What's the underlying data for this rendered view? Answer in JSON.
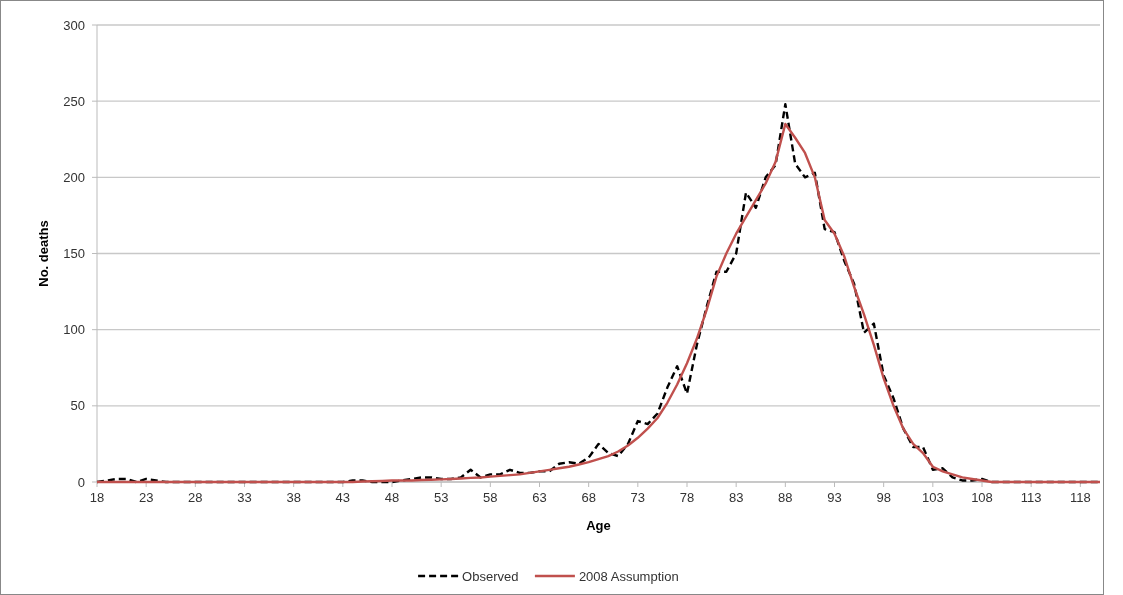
{
  "chart_data": {
    "type": "line",
    "xlabel": "Age",
    "ylabel": "No. deaths",
    "x": [
      18,
      19,
      20,
      21,
      22,
      23,
      24,
      25,
      26,
      27,
      28,
      29,
      30,
      31,
      32,
      33,
      34,
      35,
      36,
      37,
      38,
      39,
      40,
      41,
      42,
      43,
      44,
      45,
      46,
      47,
      48,
      49,
      50,
      51,
      52,
      53,
      54,
      55,
      56,
      57,
      58,
      59,
      60,
      61,
      62,
      63,
      64,
      65,
      66,
      67,
      68,
      69,
      70,
      71,
      72,
      73,
      74,
      75,
      76,
      77,
      78,
      79,
      80,
      81,
      82,
      83,
      84,
      85,
      86,
      87,
      88,
      89,
      90,
      91,
      92,
      93,
      94,
      95,
      96,
      97,
      98,
      99,
      100,
      101,
      102,
      103,
      104,
      105,
      106,
      107,
      108,
      109,
      110,
      111,
      112,
      113,
      114,
      115,
      116,
      117,
      118,
      119,
      120
    ],
    "series": [
      {
        "name": "Observed",
        "color": "#000000",
        "line_style": "dashed",
        "values": [
          0,
          1,
          2,
          2,
          0,
          2,
          1,
          0,
          0,
          0,
          0,
          0,
          0,
          0,
          0,
          0,
          0,
          0,
          0,
          0,
          0,
          0,
          0,
          0,
          0,
          0,
          1,
          1,
          0,
          0,
          0,
          1,
          2,
          3,
          3,
          2,
          2,
          3,
          8,
          3,
          5,
          5,
          8,
          6,
          6,
          7,
          7,
          12,
          13,
          12,
          16,
          25,
          19,
          17,
          25,
          40,
          38,
          45,
          62,
          76,
          58,
          90,
          115,
          138,
          138,
          150,
          190,
          180,
          200,
          208,
          248,
          209,
          200,
          203,
          166,
          164,
          145,
          130,
          98,
          104,
          70,
          55,
          35,
          23,
          23,
          8,
          9,
          3,
          1,
          1,
          2,
          0,
          0,
          0,
          0,
          0,
          0,
          0,
          0,
          0,
          0,
          0,
          0
        ]
      },
      {
        "name": "2008 Assumption",
        "color": "#c0504d",
        "line_style": "solid",
        "values": [
          0,
          0,
          0,
          0,
          0,
          0,
          0,
          0,
          0,
          0,
          0,
          0,
          0,
          0,
          0,
          0,
          0,
          0,
          0,
          0,
          0,
          0,
          0,
          0,
          0,
          0,
          0,
          0.3,
          0.5,
          0.7,
          1,
          1,
          1,
          1.3,
          1.5,
          1.7,
          2,
          2.3,
          2.7,
          3,
          3.5,
          4,
          4.5,
          5,
          6,
          7,
          8,
          9,
          10,
          11.5,
          13,
          15,
          17,
          20,
          24,
          29,
          35,
          42,
          52,
          64,
          78,
          94,
          113,
          135,
          150,
          163,
          174,
          185,
          196,
          210,
          235,
          226,
          216,
          200,
          172,
          163,
          148,
          128,
          110,
          90,
          68,
          50,
          35,
          25,
          19,
          10,
          7,
          5,
          3,
          2,
          1,
          0,
          0,
          0,
          0,
          0,
          0,
          0,
          0,
          0,
          0,
          0,
          0
        ]
      }
    ],
    "xlim": [
      18,
      120
    ],
    "xticks": [
      18,
      23,
      28,
      33,
      38,
      43,
      48,
      53,
      58,
      63,
      68,
      73,
      78,
      83,
      88,
      93,
      98,
      103,
      108,
      113,
      118
    ],
    "ylim": [
      0,
      300
    ],
    "yticks": [
      0,
      50,
      100,
      150,
      200,
      250,
      300
    ],
    "grid": "y",
    "legend": "bottom",
    "marker": "none"
  }
}
